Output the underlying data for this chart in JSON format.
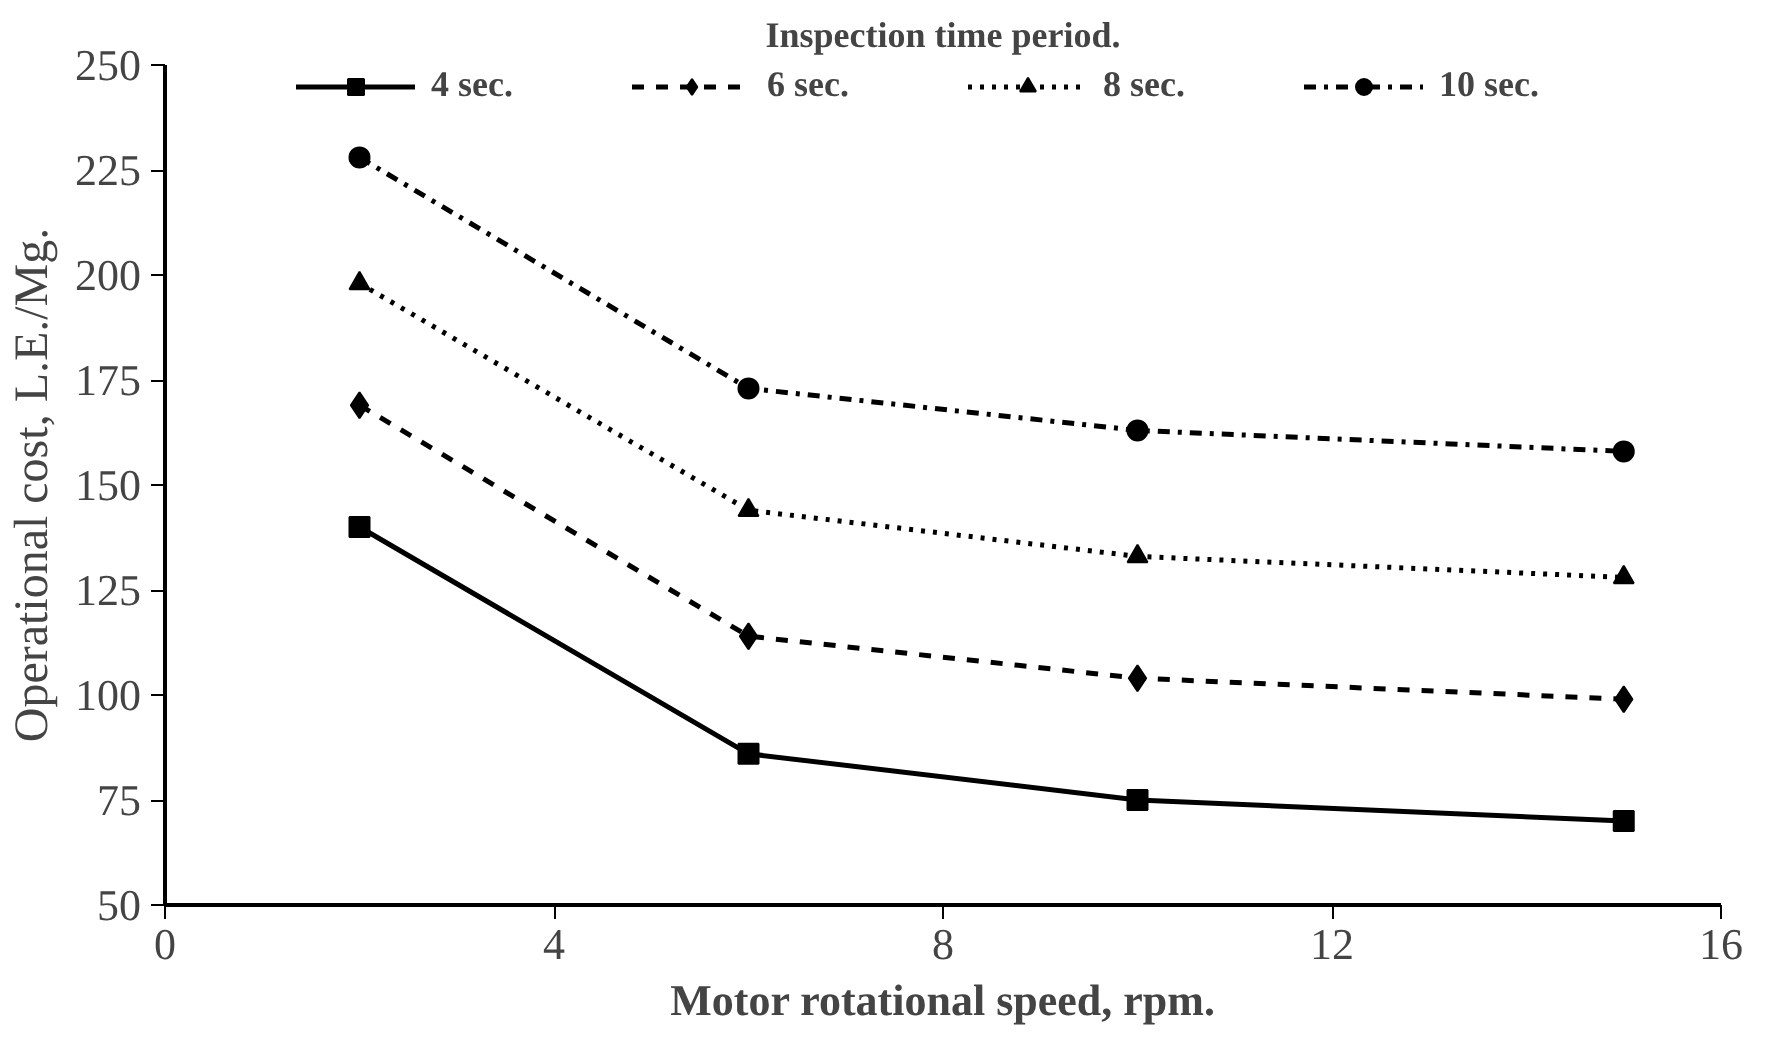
{
  "chart_data": {
    "type": "line",
    "legend_title": "Inspection time period.",
    "xlabel": "Motor rotational speed, rpm.",
    "ylabel": "Operational cost, L.E./Mg.",
    "x": [
      2,
      6,
      10,
      15
    ],
    "series": [
      {
        "name": "4 sec.",
        "color": "#000000",
        "marker": "square",
        "line_style": "solid",
        "values": [
          140,
          86,
          75,
          70
        ]
      },
      {
        "name": "6 sec.",
        "color": "#000000",
        "marker": "diamond",
        "line_style": "dashed",
        "values": [
          169,
          114,
          104,
          99
        ]
      },
      {
        "name": "8 sec.",
        "color": "#000000",
        "marker": "triangle",
        "line_style": "dotted",
        "values": [
          198,
          144,
          133,
          128
        ]
      },
      {
        "name": "10 sec.",
        "color": "#000000",
        "marker": "circle",
        "line_style": "dashdot",
        "values": [
          228,
          173,
          163,
          158
        ]
      }
    ],
    "xlim": [
      0,
      16
    ],
    "xticks": [
      0,
      4,
      8,
      12,
      16
    ],
    "ylim": [
      50,
      250
    ],
    "yticks": [
      50,
      75,
      100,
      125,
      150,
      175,
      200,
      225,
      250
    ],
    "grid": false,
    "legend": "top"
  }
}
